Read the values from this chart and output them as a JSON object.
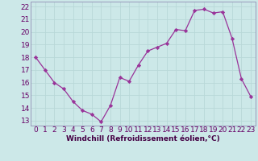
{
  "x": [
    0,
    1,
    2,
    3,
    4,
    5,
    6,
    7,
    8,
    9,
    10,
    11,
    12,
    13,
    14,
    15,
    16,
    17,
    18,
    19,
    20,
    21,
    22,
    23
  ],
  "y": [
    18,
    17,
    16,
    15.5,
    14.5,
    13.8,
    13.5,
    12.9,
    14.2,
    16.4,
    16.1,
    17.4,
    18.5,
    18.8,
    19.1,
    20.2,
    20.1,
    21.7,
    21.8,
    21.5,
    21.6,
    19.5,
    16.3,
    14.9
  ],
  "line_color": "#993399",
  "marker": "D",
  "marker_size": 2.2,
  "bg_color": "#cce8e8",
  "grid_color": "#aacccc",
  "xlabel": "Windchill (Refroidissement éolien,°C)",
  "ylabel_ticks": [
    13,
    14,
    15,
    16,
    17,
    18,
    19,
    20,
    21,
    22
  ],
  "ylim": [
    12.6,
    22.4
  ],
  "xlim": [
    -0.5,
    23.5
  ],
  "xticks": [
    0,
    1,
    2,
    3,
    4,
    5,
    6,
    7,
    8,
    9,
    10,
    11,
    12,
    13,
    14,
    15,
    16,
    17,
    18,
    19,
    20,
    21,
    22,
    23
  ],
  "xlabel_fontsize": 6.5,
  "tick_fontsize": 6.5,
  "spine_color": "#9999bb"
}
